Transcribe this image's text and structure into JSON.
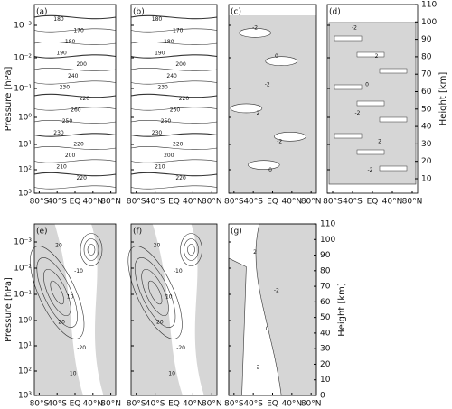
{
  "panels": [
    {
      "label": "(a)",
      "contour_labels": [
        "180",
        "170",
        "180",
        "190",
        "200",
        "240",
        "230",
        "220",
        "260",
        "250",
        "230",
        "220",
        "200",
        "210",
        "220"
      ]
    },
    {
      "label": "(b)",
      "contour_labels": [
        "180",
        "170",
        "180",
        "190",
        "200",
        "240",
        "230",
        "220",
        "260",
        "250",
        "230",
        "220",
        "200",
        "210",
        "220"
      ]
    },
    {
      "label": "(c)",
      "contour_labels": [
        "-2",
        "0",
        "-2",
        "2",
        "-2",
        "0"
      ]
    },
    {
      "label": "(d)",
      "contour_labels": [
        "-2",
        "2",
        "0",
        "-2",
        "2",
        "-2"
      ]
    },
    {
      "label": "(e)",
      "contour_labels": [
        "20",
        "-10",
        "10",
        "20",
        "-20",
        "10"
      ]
    },
    {
      "label": "(f)",
      "contour_labels": [
        "20",
        "-10",
        "10",
        "20",
        "-20",
        "10"
      ]
    },
    {
      "label": "(g)",
      "contour_labels": [
        "2",
        "-2",
        "0",
        "2"
      ]
    }
  ],
  "x_ticks": [
    "80°S",
    "40°S",
    "EQ",
    "40°N",
    "80°N"
  ],
  "pressure_axis": {
    "title": "Pressure [hPa]",
    "ticks": [
      "10⁻³",
      "10⁻²",
      "10⁻¹",
      "10⁰",
      "10¹",
      "10²",
      "10³"
    ]
  },
  "height_axis": {
    "title": "Height [km]",
    "ticks_top": [
      110,
      100,
      90,
      80,
      70,
      60,
      50,
      40,
      30,
      20,
      10
    ],
    "ticks_bottom": [
      110,
      100,
      90,
      80,
      70,
      60,
      50,
      40,
      30,
      20,
      10,
      0
    ]
  }
}
